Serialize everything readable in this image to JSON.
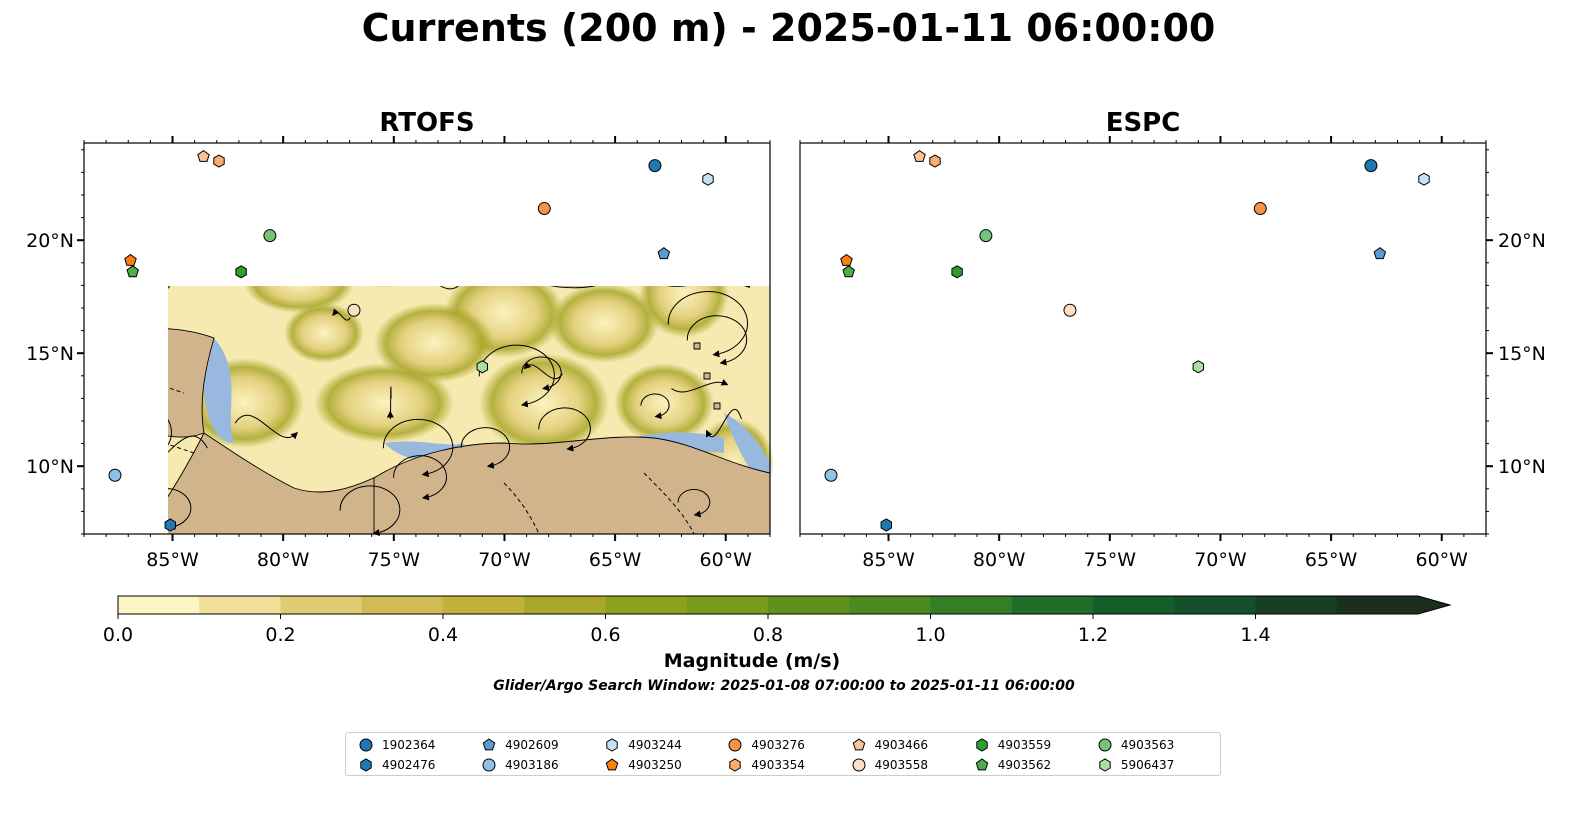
{
  "title": "Currents (200 m) - 2025-01-11 06:00:00",
  "panels": [
    {
      "title": "RTOFS"
    },
    {
      "title": "ESPC"
    }
  ],
  "x_ticks": [
    "85°W",
    "80°W",
    "75°W",
    "70°W",
    "65°W",
    "60°W"
  ],
  "y_ticks": [
    "20°N",
    "15°N",
    "10°N"
  ],
  "colorbar": {
    "label": "Magnitude (m/s)",
    "tick_labels": [
      "0.0",
      "0.2",
      "0.4",
      "0.6",
      "0.8",
      "1.0",
      "1.2",
      "1.4"
    ],
    "levels": [
      "#fcf5c2",
      "#f0e09a",
      "#e1cc76",
      "#d2bb55",
      "#c2b23c",
      "#a9a72b",
      "#8ea11f",
      "#789b1b",
      "#5f921c",
      "#4b8a20",
      "#347e26",
      "#1f6f2b",
      "#135f2c",
      "#14502a",
      "#183f25",
      "#1a2f1e"
    ],
    "extend": "max",
    "min": 0.0,
    "max": 1.6
  },
  "search_window": "Glider/Argo Search Window: 2025-01-08 07:00:00 to 2025-01-11 06:00:00",
  "colors": {
    "ocean": "#f6eab0",
    "land": "#d2b48c",
    "shelf": "#98b8e0"
  },
  "legend": [
    {
      "id": "1902364",
      "shape": "circle",
      "color": "#1f77b4"
    },
    {
      "id": "4902476",
      "shape": "hexagon",
      "color": "#1f77b4"
    },
    {
      "id": "4902609",
      "shape": "pentagon",
      "color": "#5b9bd5"
    },
    {
      "id": "4903186",
      "shape": "circle",
      "color": "#8fc1e6"
    },
    {
      "id": "4903244",
      "shape": "hexagon",
      "color": "#c6e3f5"
    },
    {
      "id": "4903250",
      "shape": "pentagon",
      "color": "#ff7f0e"
    },
    {
      "id": "4903276",
      "shape": "circle",
      "color": "#f5924a"
    },
    {
      "id": "4903354",
      "shape": "hexagon",
      "color": "#fbae6b"
    },
    {
      "id": "4903466",
      "shape": "pentagon",
      "color": "#fbc497"
    },
    {
      "id": "4903558",
      "shape": "circle",
      "color": "#fde0c2"
    },
    {
      "id": "4903559",
      "shape": "hexagon",
      "color": "#2ca02c"
    },
    {
      "id": "4903562",
      "shape": "pentagon",
      "color": "#4cae44"
    },
    {
      "id": "4903563",
      "shape": "circle",
      "color": "#74c476"
    },
    {
      "id": "5906437",
      "shape": "hexagon",
      "color": "#a8e0a0"
    }
  ],
  "floats": [
    {
      "id": "1902364",
      "lon": -63.2,
      "lat": 23.3
    },
    {
      "id": "4902476",
      "lon": -85.1,
      "lat": 7.4
    },
    {
      "id": "4902609",
      "lon": -62.8,
      "lat": 19.4
    },
    {
      "id": "4903186",
      "lon": -87.6,
      "lat": 9.6
    },
    {
      "id": "4903244",
      "lon": -60.8,
      "lat": 22.7
    },
    {
      "id": "4903250",
      "lon": -86.9,
      "lat": 19.1
    },
    {
      "id": "4903276",
      "lon": -68.2,
      "lat": 21.4
    },
    {
      "id": "4903354",
      "lon": -82.9,
      "lat": 23.5
    },
    {
      "id": "4903466",
      "lon": -83.6,
      "lat": 23.7
    },
    {
      "id": "4903558",
      "lon": -76.8,
      "lat": 16.9
    },
    {
      "id": "4903559",
      "lon": -81.9,
      "lat": 18.6
    },
    {
      "id": "4903562",
      "lon": -86.8,
      "lat": 18.6
    },
    {
      "id": "4903563",
      "lon": -80.6,
      "lat": 20.2
    },
    {
      "id": "5906437",
      "lon": -71.0,
      "lat": 14.4
    }
  ]
}
